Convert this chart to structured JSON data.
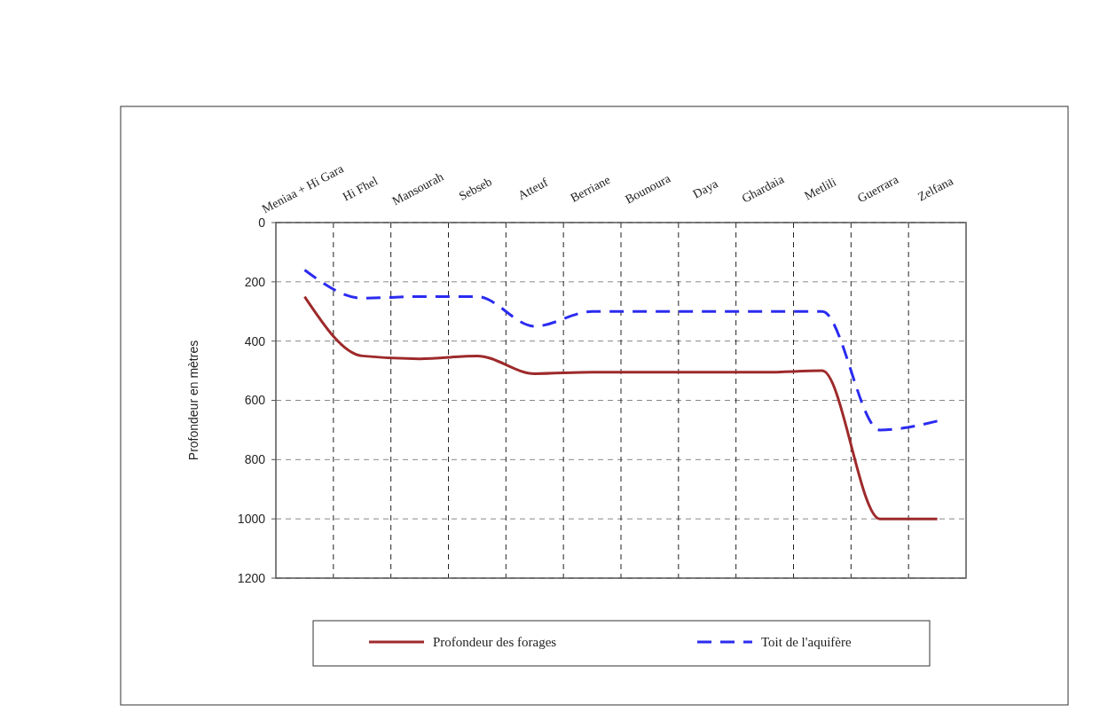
{
  "chart_data": {
    "type": "line",
    "ylabel": "Profondeur en mètres",
    "categories": [
      "Meniaa + Hi Gara",
      "Hi Fhel",
      "Mansourah",
      "Sebseb",
      "Atteuf",
      "Berriane",
      "Bounoura",
      "Daya",
      "Ghardaia",
      "Metlili",
      "Guerrara",
      "Zelfana"
    ],
    "series": [
      {
        "name": "Profondeur des forages",
        "color": "#9e2a2b",
        "line_style": "solid",
        "values": [
          250,
          450,
          460,
          450,
          510,
          505,
          505,
          505,
          505,
          500,
          1000,
          1000
        ]
      },
      {
        "name": "Toit de l'aquifère",
        "color": "#2b2bf0",
        "line_style": "dashed",
        "values": [
          160,
          255,
          250,
          250,
          350,
          300,
          300,
          300,
          300,
          300,
          700,
          670
        ]
      }
    ],
    "ylim": [
      1200,
      0
    ],
    "yticks": [
      0,
      200,
      400,
      600,
      800,
      1000,
      1200
    ],
    "grid": true,
    "legend": "bottom",
    "marker": "none"
  }
}
